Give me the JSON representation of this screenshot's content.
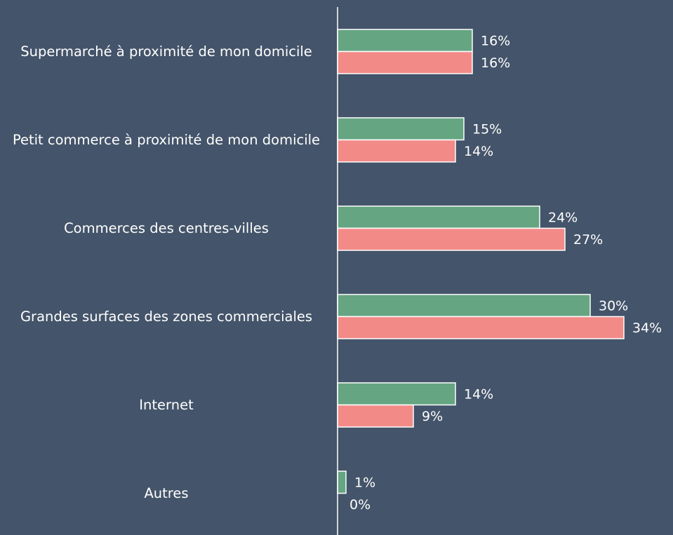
{
  "chart_data": {
    "type": "bar",
    "orientation": "horizontal",
    "categories": [
      "Supermarché à proximité de mon domicile",
      "Petit commerce à proximité de mon domicile",
      "Commerces des centres-villes",
      "Grandes surfaces des zones commerciales",
      "Internet",
      "Autres"
    ],
    "series": [
      {
        "color": "#65a582",
        "values": [
          16,
          15,
          24,
          30,
          14,
          1
        ],
        "value_labels": [
          "16%",
          "15%",
          "24%",
          "30%",
          "14%",
          "1%"
        ]
      },
      {
        "color": "#f28b88",
        "values": [
          16,
          14,
          27,
          34,
          9,
          0
        ],
        "value_labels": [
          "16%",
          "14%",
          "27%",
          "34%",
          "9%",
          "0%"
        ]
      }
    ]
  }
}
